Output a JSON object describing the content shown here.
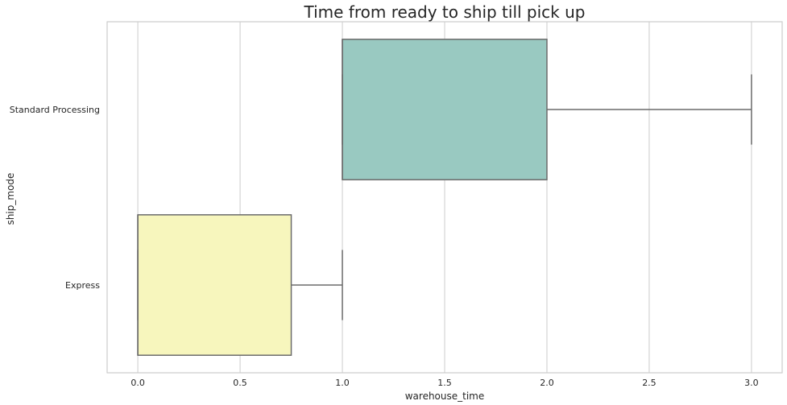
{
  "chart_data": {
    "type": "box",
    "orientation": "horizontal",
    "title": "Time from ready to ship till pick up",
    "xlabel": "warehouse_time",
    "ylabel": "ship_mode",
    "xlim": [
      -0.15,
      3.15
    ],
    "xticks": [
      0.0,
      0.5,
      1.0,
      1.5,
      2.0,
      2.5,
      3.0
    ],
    "xtick_labels": [
      "0.0",
      "0.5",
      "1.0",
      "1.5",
      "2.0",
      "2.5",
      "3.0"
    ],
    "grid": {
      "x": true,
      "y": false
    },
    "legend": "none",
    "categories": [
      "Standard Processing",
      "Express"
    ],
    "boxes": [
      {
        "category": "Standard Processing",
        "whisker_low": 1.0,
        "q1": 1.0,
        "median": 1.0,
        "q3": 2.0,
        "whisker_high": 3.0,
        "color": "#99c9c1"
      },
      {
        "category": "Express",
        "whisker_low": 0.0,
        "q1": 0.0,
        "median": 0.0,
        "q3": 0.75,
        "whisker_high": 1.0,
        "color": "#f7f6bd"
      }
    ],
    "box_line_color": "#6b6b6b",
    "grid_color": "#cccccc",
    "spine_color": "#cccccc"
  }
}
